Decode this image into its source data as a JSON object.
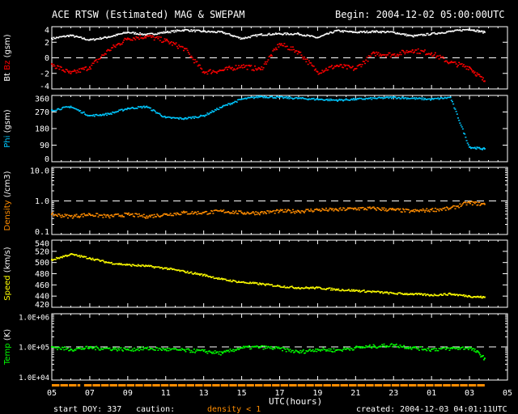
{
  "title": "ACE RTSW (Estimated) MAG & SWEPAM",
  "begin": "Begin: 2004-12-02 05:00:00UTC",
  "footer": {
    "start_doy": "start DOY: 337",
    "caution": "caution:",
    "caution_note": "density < 1",
    "created": "created: 2004-12-03 04:01:11UTC"
  },
  "colors": {
    "bt": "#ffffff",
    "bz": "#ff0000",
    "phi": "#00c8ff",
    "density": "#ff8c00",
    "speed": "#ffff00",
    "temp": "#00ff00"
  },
  "chart_data": {
    "type": "scatter",
    "xlabel": "UTC(hours)",
    "x_ticks": [
      "05",
      "07",
      "09",
      "11",
      "13",
      "15",
      "17",
      "19",
      "21",
      "23",
      "01",
      "03",
      "05"
    ],
    "x_range_hours": [
      0,
      24
    ],
    "x_hours": [
      0,
      1,
      2,
      3,
      4,
      5,
      6,
      7,
      8,
      9,
      10,
      11,
      12,
      13,
      14,
      15,
      16,
      17,
      18,
      19,
      20,
      21,
      22,
      22.8
    ],
    "panels": [
      {
        "ylabel_parts": [
          "Bt",
          "Bz"
        ],
        "ylabel_suffix": "(gsm)",
        "scale": "linear",
        "ylim": [
          -4,
          4
        ],
        "ticks": [
          "4",
          "2",
          "0",
          "-2",
          "-4"
        ],
        "tick_values": [
          4,
          2,
          0,
          -2,
          -4
        ],
        "dashed_at": 0,
        "series": [
          {
            "name": "Bt",
            "color": "#ffffff",
            "values": [
              2.5,
              2.9,
              2.3,
              2.7,
              3.3,
              3.0,
              3.3,
              3.6,
              3.4,
              3.3,
              2.5,
              3.0,
              3.1,
              3.1,
              2.6,
              3.5,
              3.3,
              3.4,
              3.3,
              2.8,
              3.1,
              3.4,
              3.7,
              3.3
            ]
          },
          {
            "name": "Bz",
            "color": "#ff0000",
            "values": [
              -0.8,
              -2.0,
              -1.2,
              1.0,
              2.5,
              2.8,
              2.2,
              1.2,
              -1.8,
              -1.6,
              -1.0,
              -1.5,
              1.8,
              0.8,
              -1.8,
              -1.0,
              -1.4,
              0.6,
              0.4,
              1.0,
              0.6,
              -0.6,
              -1.2,
              -3.0
            ]
          }
        ]
      },
      {
        "ylabel": "Phi",
        "ylabel_suffix": "(gsm)",
        "scale": "linear",
        "ylim": [
          0,
          360
        ],
        "ticks": [
          "360",
          "270",
          "180",
          "90",
          "0"
        ],
        "tick_values": [
          360,
          270,
          180,
          90,
          0
        ],
        "series": [
          {
            "name": "Phi",
            "color": "#00c8ff",
            "values": [
              280,
              300,
              250,
              260,
              290,
              300,
              240,
              235,
              250,
              300,
              340,
              355,
              350,
              345,
              340,
              335,
              340,
              345,
              350,
              345,
              340,
              350,
              80,
              70
            ]
          }
        ]
      },
      {
        "ylabel": "Density",
        "ylabel_suffix": "(/cm3)",
        "scale": "log",
        "ylim": [
          0.1,
          10
        ],
        "ticks": [
          "10.0",
          "1.0",
          "0.1"
        ],
        "tick_values": [
          10,
          1,
          0.1
        ],
        "dashed_at": 1,
        "series": [
          {
            "name": "Density",
            "color": "#ff8c00",
            "values": [
              0.4,
              0.35,
              0.4,
              0.35,
              0.4,
              0.35,
              0.4,
              0.45,
              0.45,
              0.5,
              0.45,
              0.45,
              0.5,
              0.5,
              0.55,
              0.55,
              0.6,
              0.6,
              0.55,
              0.5,
              0.55,
              0.6,
              0.9,
              0.8
            ]
          }
        ]
      },
      {
        "ylabel": "Speed",
        "ylabel_suffix": "(km/s)",
        "scale": "linear",
        "ylim": [
          420,
          540
        ],
        "ticks": [
          "540",
          "520",
          "500",
          "480",
          "460",
          "440",
          "420"
        ],
        "tick_values": [
          540,
          520,
          500,
          480,
          460,
          440,
          420
        ],
        "series": [
          {
            "name": "Speed",
            "color": "#ffff00",
            "values": [
              505,
              515,
              508,
              500,
              496,
              494,
              490,
              484,
              478,
              470,
              465,
              462,
              458,
              455,
              455,
              452,
              450,
              448,
              445,
              444,
              442,
              444,
              440,
              438
            ]
          }
        ]
      },
      {
        "ylabel": "Temp",
        "ylabel_suffix": "(K)",
        "scale": "log",
        "ylim": [
          10000,
          1000000
        ],
        "ticks": [
          "1.0E+06",
          "1.0E+05",
          "1.0E+04"
        ],
        "tick_values": [
          1000000,
          100000,
          10000
        ],
        "dashed_at": 100000,
        "series": [
          {
            "name": "Temp",
            "color": "#00ff00",
            "values": [
              100000,
              85000,
              95000,
              90000,
              85000,
              90000,
              85000,
              80000,
              75000,
              65000,
              95000,
              100000,
              90000,
              70000,
              85000,
              80000,
              95000,
              105000,
              115000,
              95000,
              85000,
              90000,
              95000,
              45000
            ]
          }
        ]
      }
    ]
  }
}
